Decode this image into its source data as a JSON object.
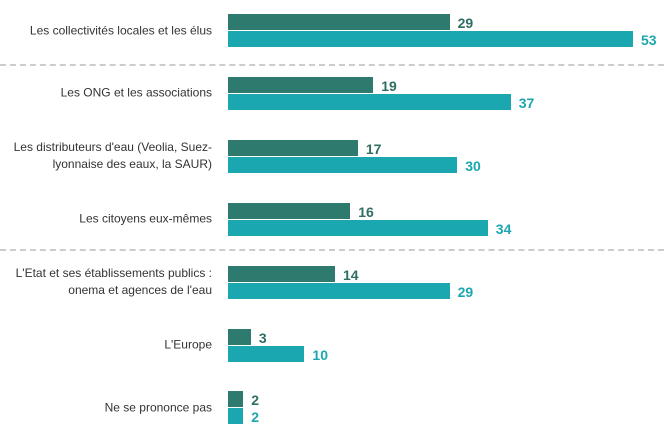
{
  "chart_data": {
    "type": "bar",
    "orientation": "horizontal",
    "categories": [
      "Les collectivités locales et les élus",
      "Les ONG et les associations",
      "Les distributeurs d'eau (Veolia, Suez-lyonnaise des eaux, la SAUR)",
      "Les citoyens eux-mêmes",
      "L'Etat et ses établissements publics : onema et agences de l'eau",
      "L'Europe",
      "Ne se prononce pas"
    ],
    "series": [
      {
        "color": "#2e7a6e",
        "values": [
          29,
          19,
          17,
          16,
          14,
          3,
          2
        ]
      },
      {
        "color": "#1aa7b0",
        "values": [
          53,
          37,
          30,
          34,
          29,
          10,
          2
        ]
      }
    ]
  }
}
